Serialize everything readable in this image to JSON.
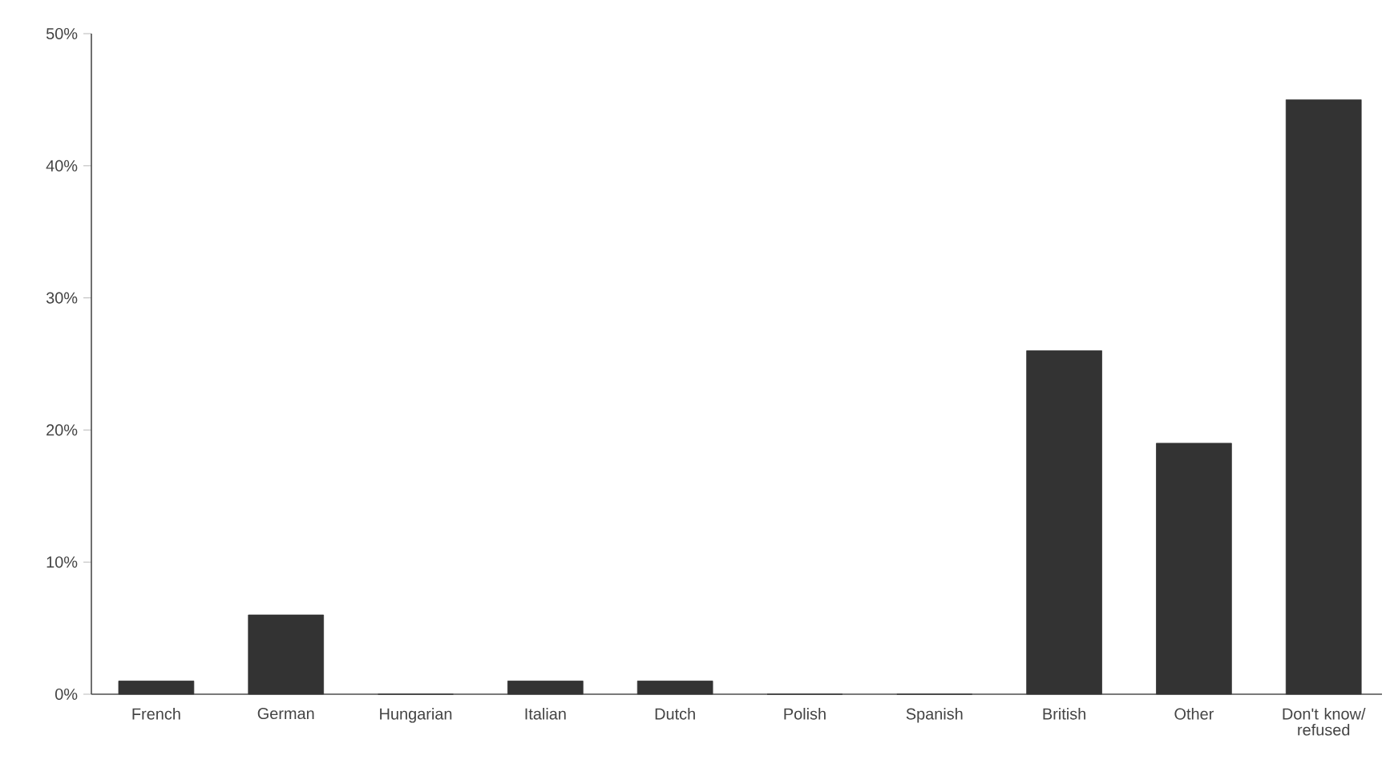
{
  "chart_data": {
    "type": "bar",
    "categories": [
      "French",
      "German",
      "Hungarian",
      "Italian",
      "Dutch",
      "Polish",
      "Spanish",
      "British",
      "Other",
      "Don't know/ refused"
    ],
    "values": [
      1,
      6,
      0,
      1,
      1,
      0,
      0,
      26,
      19,
      45
    ],
    "color": "#333333",
    "ylim": [
      0,
      50
    ],
    "yticks": [
      {
        "value": 0,
        "label": "0%"
      },
      {
        "value": 10,
        "label": "10%"
      },
      {
        "value": 20,
        "label": "20%"
      },
      {
        "value": 30,
        "label": "30%"
      },
      {
        "value": 40,
        "label": "40%"
      },
      {
        "value": 50,
        "label": "50%"
      }
    ],
    "grid": false
  }
}
